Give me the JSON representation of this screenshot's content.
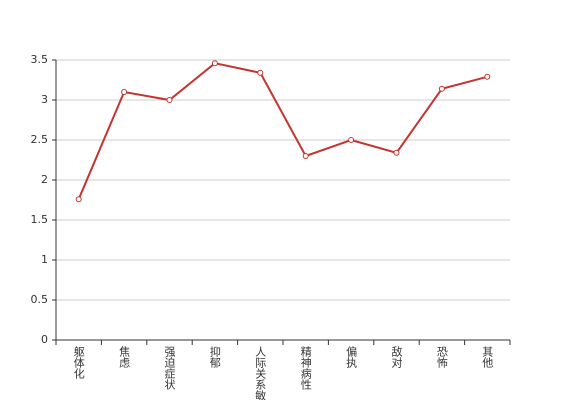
{
  "chart_data": {
    "type": "line",
    "categories": [
      "躯体化",
      "焦虑",
      "强迫症状",
      "抑郁",
      "人际关系敏感",
      "精神病性",
      "偏执",
      "敌对",
      "恐怖",
      "其他"
    ],
    "values": [
      1.76,
      3.1,
      3.0,
      3.46,
      3.34,
      2.3,
      2.5,
      2.34,
      3.14,
      3.29
    ],
    "color": "#c23531",
    "ylim": [
      0,
      3.5
    ],
    "yticks": [
      0,
      0.5,
      1,
      1.5,
      2,
      2.5,
      3,
      3.5
    ],
    "grid": true
  }
}
